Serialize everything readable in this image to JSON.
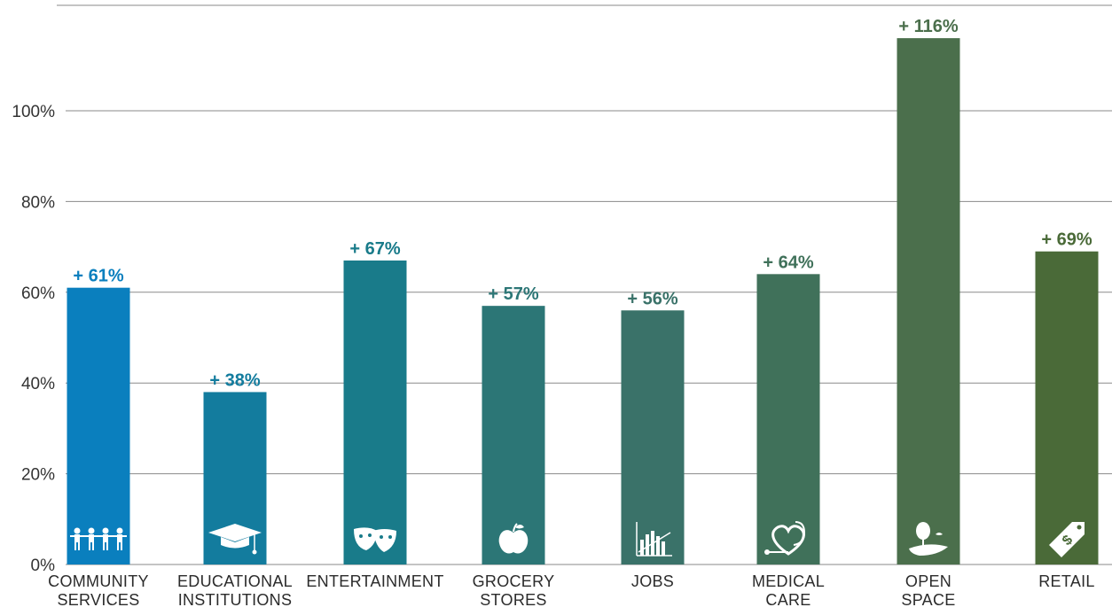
{
  "chart_data": {
    "type": "bar",
    "categories": [
      [
        "COMMUNITY",
        "SERVICES"
      ],
      [
        "EDUCATIONAL",
        "INSTITUTIONS"
      ],
      [
        "ENTERTAINMENT"
      ],
      [
        "GROCERY",
        "STORES"
      ],
      [
        "JOBS"
      ],
      [
        "MEDICAL",
        "CARE"
      ],
      [
        "OPEN",
        "SPACE"
      ],
      [
        "RETAIL"
      ]
    ],
    "values": [
      61,
      38,
      67,
      57,
      56,
      64,
      116,
      69
    ],
    "data_labels": [
      "+ 61%",
      "+ 38%",
      "+ 67%",
      "+ 57%",
      "+ 56%",
      "+ 64%",
      "+ 116%",
      "+ 69%"
    ],
    "bar_colors": [
      "#0a7fbe",
      "#137c9e",
      "#197b8a",
      "#2c7676",
      "#3a7269",
      "#40715a",
      "#4b6f4c",
      "#4a6a38"
    ],
    "label_colors": [
      "#0a7fbe",
      "#137c9e",
      "#197b8a",
      "#2c7676",
      "#3a7269",
      "#40715a",
      "#4b6f4c",
      "#4a6a38"
    ],
    "icons": [
      "people-icon",
      "graduation-cap-icon",
      "theater-masks-icon",
      "apple-icon",
      "bar-chart-icon",
      "stethoscope-heart-icon",
      "tree-landscape-icon",
      "price-tag-icon"
    ],
    "yticks": [
      0,
      20,
      40,
      60,
      80,
      100
    ],
    "ytick_labels": [
      "0%",
      "20%",
      "40%",
      "60%",
      "80%",
      "100%"
    ],
    "ylim": [
      0,
      120
    ],
    "grid": true,
    "title": "",
    "xlabel": "",
    "ylabel": ""
  }
}
